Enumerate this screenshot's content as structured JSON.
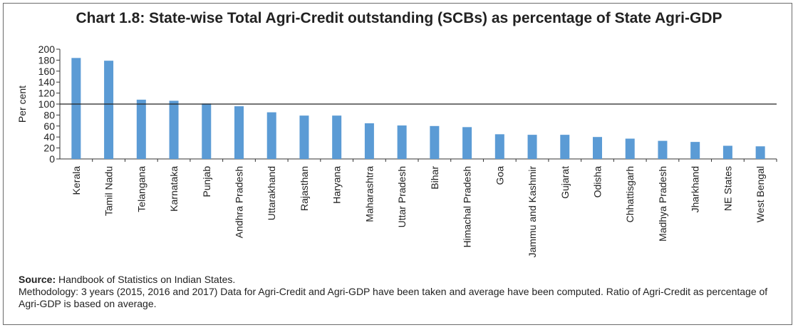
{
  "chart_data": {
    "type": "bar",
    "title": "Chart 1.8: State-wise Total Agri-Credit outstanding (SCBs) as percentage of State Agri-GDP",
    "xlabel": "",
    "ylabel": "Per cent",
    "ylim": [
      0,
      200
    ],
    "yticks": [
      0,
      20,
      40,
      60,
      80,
      100,
      120,
      140,
      160,
      180,
      200
    ],
    "reference_line": 100,
    "grid": false,
    "bar_color": "#5b9bd5",
    "categories": [
      "Kerala",
      "Tamil Nadu",
      "Telangana",
      "Karnataka",
      "Punjab",
      "Andhra Pradesh",
      "Uttarakhand",
      "Rajasthan",
      "Haryana",
      "Maharashtra",
      "Uttar Pradesh",
      "Bihar",
      "Himachal Pradesh",
      "Goa",
      "Jammu and Kashmir",
      "Gujarat",
      "Odisha",
      "Chhattisgarh",
      "Madhya Pradesh",
      "Jharkhand",
      "NE States",
      "West Bengal"
    ],
    "values": [
      184,
      179,
      108,
      106,
      101,
      96,
      85,
      79,
      79,
      65,
      61,
      60,
      58,
      45,
      44,
      44,
      40,
      37,
      33,
      31,
      24,
      23
    ]
  },
  "notes": {
    "source_label": "Source:",
    "source_text": " Handbook of Statistics on Indian States.",
    "methodology": "Methodology: 3 years (2015, 2016 and 2017) Data for Agri-Credit and Agri-GDP have been taken and average have been computed. Ratio of Agri-Credit as percentage of Agri-GDP is based on average."
  }
}
